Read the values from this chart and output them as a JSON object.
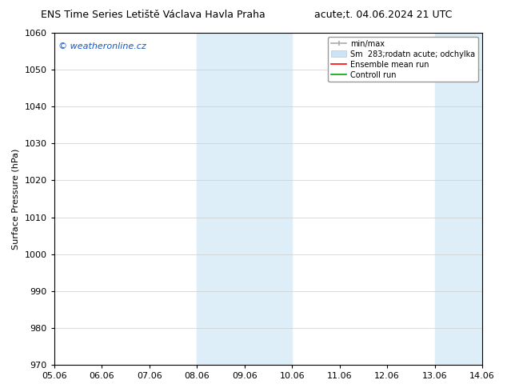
{
  "title_left": "ENS Time Series Letiště Václava Havla Praha",
  "title_right": "acute;t. 04.06.2024 21 UTC",
  "ylabel": "Surface Pressure (hPa)",
  "ylim": [
    970,
    1060
  ],
  "yticks": [
    970,
    980,
    990,
    1000,
    1010,
    1020,
    1030,
    1040,
    1050,
    1060
  ],
  "xlim_start": 0,
  "xlim_end": 9,
  "xtick_labels": [
    "05.06",
    "06.06",
    "07.06",
    "08.06",
    "09.06",
    "10.06",
    "11.06",
    "12.06",
    "13.06",
    "14.06"
  ],
  "xtick_positions": [
    0,
    1,
    2,
    3,
    4,
    5,
    6,
    7,
    8,
    9
  ],
  "shade_bands": [
    {
      "x_start": 3,
      "x_end": 5,
      "color": "#ddeef8"
    },
    {
      "x_start": 8,
      "x_end": 9,
      "color": "#ddeef8"
    }
  ],
  "watermark_text": "© weatheronline.cz",
  "watermark_color": "#1155cc",
  "background_color": "#ffffff",
  "plot_bg_color": "#ffffff",
  "border_color": "#000000",
  "title_fontsize": 9,
  "axis_fontsize": 8,
  "tick_fontsize": 8,
  "legend_fontsize": 7,
  "minmax_color": "#aaaaaa",
  "sm_color": "#cce4f5",
  "sm_edge_color": "#aaccdd",
  "ensemble_color": "#ff0000",
  "control_color": "#00aa00",
  "grid_color": "#cccccc",
  "legend_label_minmax": "min/max",
  "legend_label_sm": "Sm  283;rodatn acute; odchylka",
  "legend_label_ensemble": "Ensemble mean run",
  "legend_label_control": "Controll run"
}
